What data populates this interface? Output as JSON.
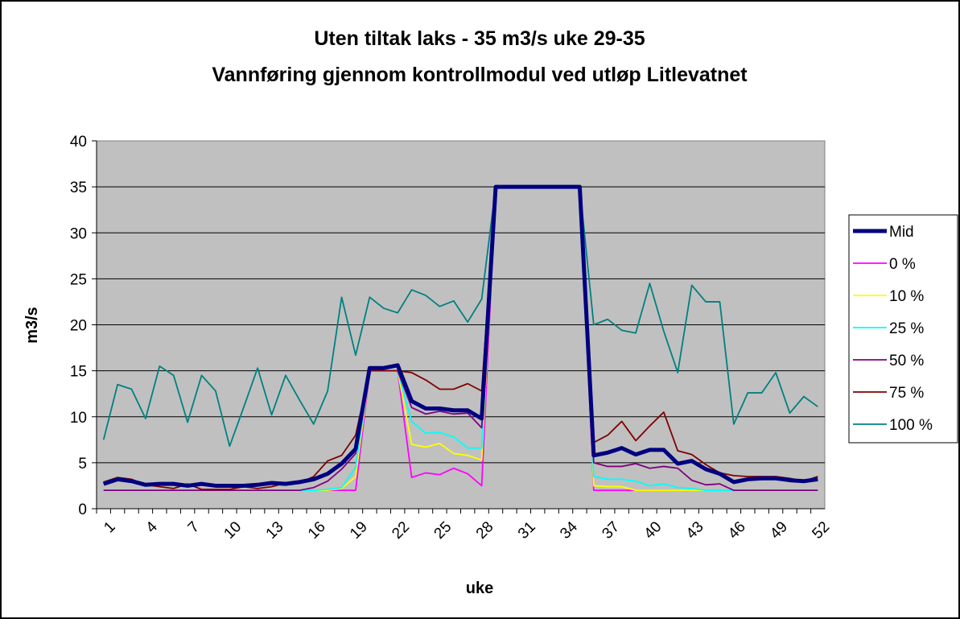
{
  "chart_data": {
    "type": "line",
    "title": [
      "Uten tiltak laks - 35 m3/s uke 29-35",
      "Vannføring gjennom kontrollmodul ved utløp Litlevatnet"
    ],
    "x_label": "uke",
    "y_label": "m3/s",
    "categories": [
      "1",
      null,
      null,
      "4",
      null,
      null,
      "7",
      null,
      null,
      "10",
      null,
      null,
      "13",
      null,
      null,
      "16",
      null,
      null,
      "19",
      null,
      null,
      "22",
      null,
      null,
      "25",
      null,
      null,
      "28",
      null,
      null,
      "31",
      null,
      null,
      "34",
      null,
      null,
      "37",
      null,
      null,
      "40",
      null,
      null,
      "43",
      null,
      null,
      "46",
      null,
      null,
      "49",
      null,
      null,
      "52"
    ],
    "ylim": [
      0,
      40
    ],
    "yticks": [
      0,
      5,
      10,
      15,
      20,
      25,
      30,
      35,
      40
    ],
    "grid": true,
    "legend": "right",
    "series": [
      {
        "name": "Mid",
        "color": "#000080",
        "values": [
          2.7,
          3.2,
          3.0,
          2.6,
          2.7,
          2.7,
          2.5,
          2.7,
          2.5,
          2.5,
          2.5,
          2.6,
          2.8,
          2.7,
          2.9,
          3.2,
          3.8,
          4.9,
          6.5,
          15.3,
          15.3,
          15.6,
          11.7,
          10.9,
          10.9,
          10.7,
          10.7,
          9.8,
          35,
          35,
          35,
          35,
          35,
          35,
          35,
          5.8,
          6.1,
          6.6,
          5.9,
          6.4,
          6.4,
          4.9,
          5.2,
          4.3,
          3.8,
          2.9,
          3.2,
          3.3,
          3.3,
          3.1,
          3.0,
          3.2
        ]
      },
      {
        "name": "0 %",
        "color": "#ff00ff",
        "values": [
          2,
          2,
          2,
          2,
          2,
          2,
          2,
          2,
          2,
          2,
          2,
          2,
          2,
          2,
          2,
          2,
          2,
          2,
          2,
          15,
          15,
          15,
          3.4,
          3.9,
          3.7,
          4.4,
          3.8,
          2.5,
          35,
          35,
          35,
          35,
          35,
          35,
          35,
          2,
          2,
          2,
          2,
          2,
          2,
          2,
          2,
          2,
          2,
          2,
          2,
          2,
          2,
          2,
          2,
          2
        ]
      },
      {
        "name": "10 %",
        "color": "#ffff00",
        "values": [
          2,
          2,
          2,
          2,
          2,
          2,
          2,
          2,
          2,
          2,
          2,
          2,
          2,
          2,
          2,
          2,
          2,
          2.2,
          3.5,
          15,
          15,
          15,
          7,
          6.7,
          7.1,
          6,
          5.8,
          5.3,
          35,
          35,
          35,
          35,
          35,
          35,
          35,
          2.5,
          2.4,
          2.4,
          2,
          2,
          2,
          2,
          2,
          2,
          2,
          2,
          2,
          2,
          2,
          2,
          2,
          2
        ]
      },
      {
        "name": "25 %",
        "color": "#00ffff",
        "values": [
          2,
          2,
          2,
          2,
          2,
          2,
          2,
          2,
          2,
          2,
          2,
          2,
          2,
          2,
          2,
          2,
          2.1,
          2.3,
          4.5,
          15,
          15,
          15,
          9.5,
          8.2,
          8.3,
          7.8,
          6.6,
          6.6,
          35,
          35,
          35,
          35,
          35,
          35,
          35,
          3.5,
          3.2,
          3.2,
          3.0,
          2.5,
          2.7,
          2.3,
          2.2,
          2,
          2,
          2,
          2,
          2,
          2,
          2,
          2,
          2
        ]
      },
      {
        "name": "50 %",
        "color": "#800080",
        "values": [
          2,
          2,
          2,
          2,
          2,
          2,
          2,
          2,
          2,
          2,
          2,
          2,
          2,
          2,
          2,
          2.3,
          3,
          4.3,
          6,
          15,
          15,
          15,
          11,
          10.3,
          10.6,
          10.3,
          10.4,
          8.8,
          35,
          35,
          35,
          35,
          35,
          35,
          35,
          5,
          4.6,
          4.6,
          4.9,
          4.4,
          4.6,
          4.4,
          3.1,
          2.6,
          2.7,
          2,
          2,
          2,
          2,
          2,
          2,
          2
        ]
      },
      {
        "name": "75 %",
        "color": "#800000",
        "values": [
          2.9,
          3.4,
          3.2,
          2.6,
          2.4,
          2.2,
          2.7,
          2.1,
          2.1,
          2.1,
          2.4,
          2.2,
          2.4,
          2.8,
          2.8,
          3.5,
          5.2,
          5.8,
          8,
          15,
          15,
          15,
          14.8,
          14,
          13,
          13,
          13.6,
          12.8,
          35,
          35,
          35,
          35,
          35,
          35,
          35,
          7.2,
          8,
          9.5,
          7.4,
          9,
          10.5,
          6.3,
          5.9,
          4.8,
          3.9,
          3.6,
          3.5,
          3.5,
          3.5,
          3.3,
          3.0,
          3.5
        ]
      },
      {
        "name": "100 %",
        "color": "#008080",
        "values": [
          7.5,
          13.5,
          13,
          9.8,
          15.5,
          14.5,
          9.4,
          14.5,
          12.8,
          6.8,
          11,
          15.3,
          10.2,
          14.5,
          11.8,
          9.2,
          12.8,
          23,
          16.7,
          23,
          21.8,
          21.3,
          23.8,
          23.2,
          22,
          22.6,
          20.3,
          22.8,
          35,
          35,
          35,
          35,
          35,
          35,
          35,
          20,
          20.6,
          19.4,
          19.1,
          24.5,
          19.3,
          14.8,
          24.3,
          22.5,
          22.5,
          9.2,
          12.6,
          12.6,
          14.8,
          10.4,
          12.2,
          11.1
        ]
      }
    ]
  }
}
